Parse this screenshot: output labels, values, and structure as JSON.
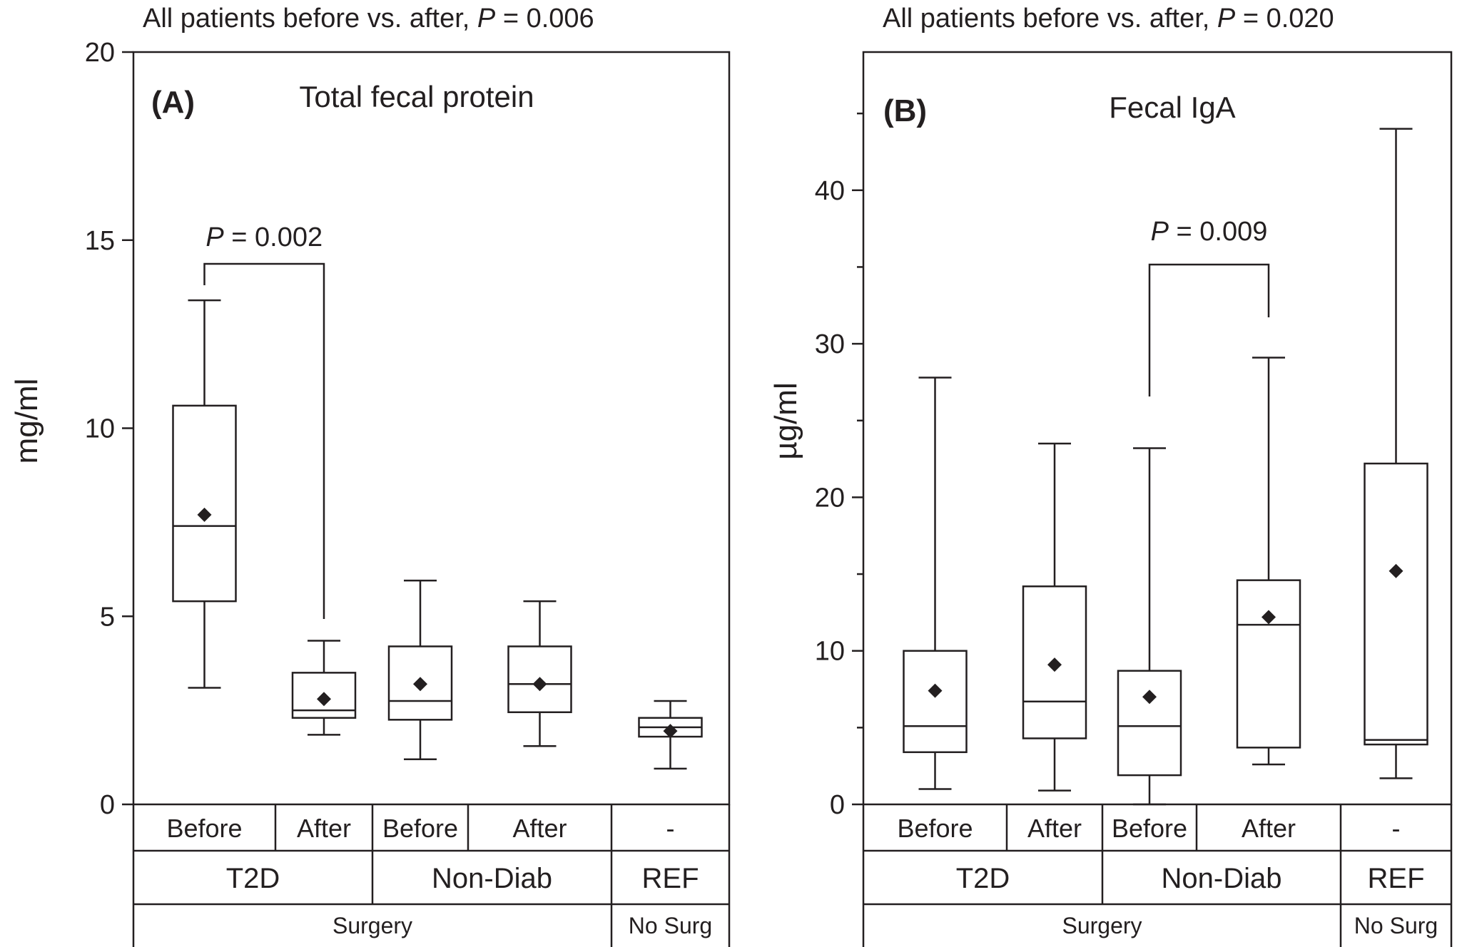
{
  "chart_data": [
    {
      "type": "box",
      "panel_label": "(A)",
      "title": "Total fecal protein",
      "header_text": "All patients  before vs. after, ",
      "header_p_label": "P",
      "header_p_value": " = 0.006",
      "ylabel": "mg/ml",
      "ylim": [
        0,
        20
      ],
      "yticks": [
        0,
        5,
        10,
        15,
        20
      ],
      "ytick_labels": [
        "0",
        "5",
        "10",
        "15",
        "20"
      ],
      "categories": [
        "Before",
        "After",
        "Before",
        "After",
        "-"
      ],
      "groups": [
        "T2D",
        "Non-Diab",
        "REF"
      ],
      "supergroups": [
        "Surgery",
        "No Surg"
      ],
      "boxes": [
        {
          "whisker_low": 3.1,
          "q1": 5.4,
          "median": 7.4,
          "q3": 10.6,
          "whisker_high": 13.4,
          "mean": 7.7
        },
        {
          "whisker_low": 1.85,
          "q1": 2.3,
          "median": 2.5,
          "q3": 3.5,
          "whisker_high": 4.35,
          "mean": 2.8
        },
        {
          "whisker_low": 1.2,
          "q1": 2.25,
          "median": 2.75,
          "q3": 4.2,
          "whisker_high": 5.95,
          "mean": 3.2
        },
        {
          "whisker_low": 1.55,
          "q1": 2.45,
          "median": 3.2,
          "q3": 4.2,
          "whisker_high": 5.4,
          "mean": 3.2
        },
        {
          "whisker_low": 0.95,
          "q1": 1.8,
          "median": 2.05,
          "q3": 2.3,
          "whisker_high": 2.75,
          "mean": 1.95
        }
      ],
      "comparison": {
        "p_label": "P",
        "p_value": " = 0.002",
        "between": [
          0,
          1
        ]
      }
    },
    {
      "type": "box",
      "panel_label": "(B)",
      "title": "Fecal IgA",
      "header_text": "All patients  before vs. after, ",
      "header_p_label": "P",
      "header_p_value": " = 0.020",
      "ylabel": "µg/ml",
      "ylim": [
        0,
        49
      ],
      "yticks": [
        0,
        10,
        20,
        30,
        40
      ],
      "ytick_labels": [
        "0",
        "10",
        "20",
        "30",
        "40"
      ],
      "minor_yticks": [
        5,
        15,
        25,
        35,
        45
      ],
      "categories": [
        "Before",
        "After",
        "Before",
        "After",
        "-"
      ],
      "groups": [
        "T2D",
        "Non-Diab",
        "REF"
      ],
      "supergroups": [
        "Surgery",
        "No Surg"
      ],
      "boxes": [
        {
          "whisker_low": 1.0,
          "q1": 3.4,
          "median": 5.1,
          "q3": 10.0,
          "whisker_high": 27.8,
          "mean": 7.4
        },
        {
          "whisker_low": 0.9,
          "q1": 4.3,
          "median": 6.7,
          "q3": 14.2,
          "whisker_high": 23.5,
          "mean": 9.1
        },
        {
          "whisker_low": 0.0,
          "q1": 1.9,
          "median": 5.1,
          "q3": 8.7,
          "whisker_high": 23.2,
          "mean": 7.0
        },
        {
          "whisker_low": 2.6,
          "q1": 3.7,
          "median": 11.7,
          "q3": 14.6,
          "whisker_high": 29.1,
          "mean": 12.2
        },
        {
          "whisker_low": 1.7,
          "q1": 3.9,
          "median": 4.2,
          "q3": 22.2,
          "whisker_high": 44.0,
          "mean": 15.2
        }
      ],
      "comparison": {
        "p_label": "P",
        "p_value": " = 0.009",
        "between": [
          2,
          3
        ]
      }
    }
  ]
}
